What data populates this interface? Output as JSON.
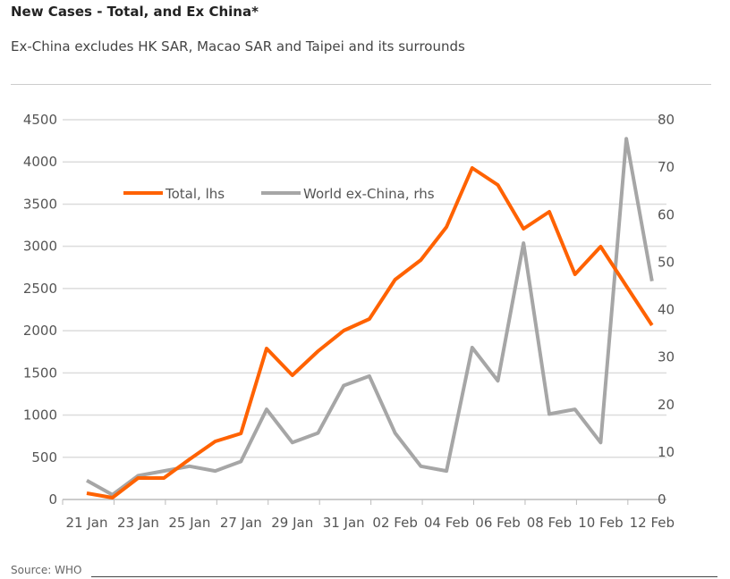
{
  "title": "New Cases - Total, and Ex China*",
  "subtitle": "Ex-China excludes HK SAR, Macao SAR and Taipei and its surrounds",
  "source": "Source: WHO",
  "chart_data": {
    "type": "line",
    "categories": [
      "21 Jan",
      "22 Jan",
      "23 Jan",
      "24 Jan",
      "25 Jan",
      "26 Jan",
      "27 Jan",
      "28 Jan",
      "29 Jan",
      "30 Jan",
      "31 Jan",
      "01 Feb",
      "02 Feb",
      "03 Feb",
      "04 Feb",
      "05 Feb",
      "06 Feb",
      "07 Feb",
      "08 Feb",
      "09 Feb",
      "10 Feb",
      "11 Feb",
      "12 Feb"
    ],
    "x_tick_labels": [
      "21 Jan",
      "23 Jan",
      "25 Jan",
      "27 Jan",
      "29 Jan",
      "31 Jan",
      "02 Feb",
      "04 Feb",
      "06 Feb",
      "08 Feb",
      "10 Feb",
      "12 Feb"
    ],
    "series": [
      {
        "name": "Total, lhs",
        "axis": "left",
        "color": "#ff6200",
        "values": [
          74,
          21,
          254,
          254,
          476,
          688,
          783,
          1789,
          1472,
          1758,
          2001,
          2139,
          2605,
          2838,
          3229,
          3928,
          3727,
          3208,
          3409,
          2668,
          2996,
          2530,
          2065
        ]
      },
      {
        "name": "World ex-China, rhs",
        "axis": "right",
        "color": "#a6a6a6",
        "values": [
          4,
          1,
          5,
          6,
          7,
          6,
          8,
          19,
          12,
          14,
          24,
          26,
          14,
          7,
          6,
          32,
          25,
          54,
          18,
          19,
          12,
          76,
          46
        ]
      }
    ],
    "ylim_left": [
      0,
      4500
    ],
    "yticks_left": [
      "0",
      "500",
      "1000",
      "1500",
      "2000",
      "2500",
      "3000",
      "3500",
      "4000",
      "4500"
    ],
    "ylim_right": [
      0,
      80
    ],
    "yticks_right": [
      "0",
      "10",
      "20",
      "30",
      "40",
      "50",
      "60",
      "70",
      "80"
    ],
    "grid": true,
    "legend_position": "top-left"
  }
}
